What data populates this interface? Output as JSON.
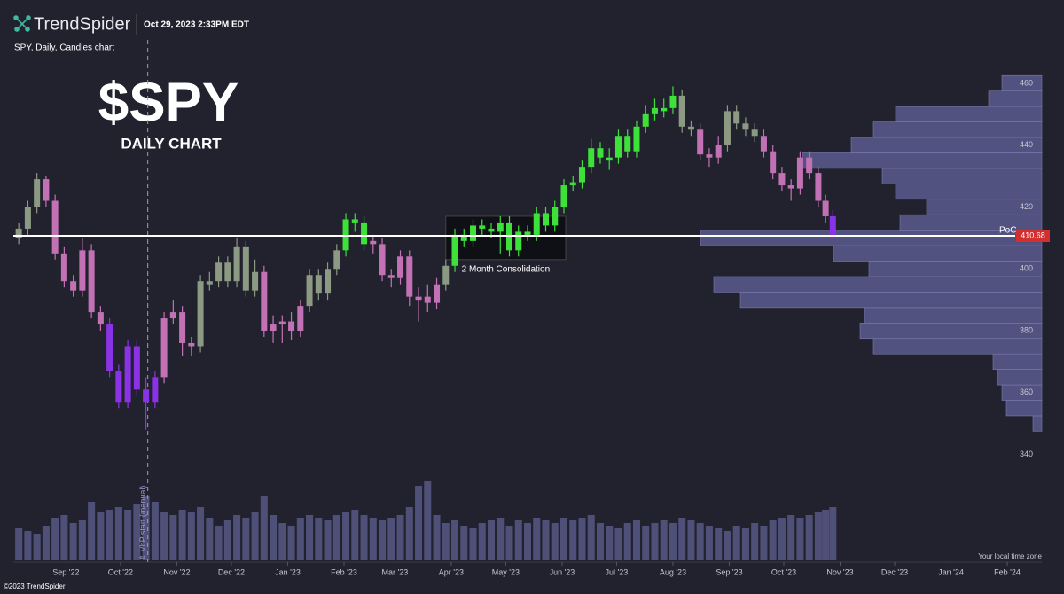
{
  "header": {
    "brand": "TrendSpider",
    "timestamp": "Oct 29, 2023 2:33PM EDT",
    "subtitle": "SPY, Daily, Candles chart",
    "copyright": "©2023 TrendSpider",
    "timezone": "Your local time zone"
  },
  "chart_data": {
    "type": "candlestick",
    "title": "$SPY",
    "subtitle": "DAILY CHART",
    "xlim": [
      2,
      568
    ],
    "ylim": [
      335,
      464
    ],
    "yticks": [
      340,
      360,
      380,
      400,
      420,
      440,
      460
    ],
    "xticks": [
      {
        "value": 31,
        "label": "Sep '22"
      },
      {
        "value": 61,
        "label": "Oct '22"
      },
      {
        "value": 92,
        "label": "Nov '22"
      },
      {
        "value": 122,
        "label": "Dec '22"
      },
      {
        "value": 153,
        "label": "Jan '23"
      },
      {
        "value": 184,
        "label": "Feb '23"
      },
      {
        "value": 212,
        "label": "Mar '23"
      },
      {
        "value": 243,
        "label": "Apr '23"
      },
      {
        "value": 273,
        "label": "May '23"
      },
      {
        "value": 304,
        "label": "Jun '23"
      },
      {
        "value": 334,
        "label": "Jul '23"
      },
      {
        "value": 365,
        "label": "Aug '23"
      },
      {
        "value": 396,
        "label": "Sep '23"
      },
      {
        "value": 426,
        "label": "Oct '23"
      },
      {
        "value": 457,
        "label": "Nov '23"
      },
      {
        "value": 487,
        "label": "Dec '23"
      },
      {
        "value": 518,
        "label": "Jan '24"
      },
      {
        "value": 549,
        "label": "Feb '24"
      }
    ],
    "x": [
      5,
      10,
      15,
      20,
      25,
      30,
      35,
      40,
      45,
      50,
      55,
      60,
      65,
      70,
      75,
      80,
      85,
      90,
      95,
      100,
      105,
      110,
      115,
      120,
      125,
      130,
      135,
      140,
      145,
      150,
      155,
      160,
      165,
      170,
      175,
      180,
      185,
      190,
      195,
      200,
      205,
      210,
      215,
      220,
      225,
      230,
      235,
      240,
      245,
      250,
      255,
      260,
      265,
      270,
      275,
      280,
      285,
      290,
      295,
      300,
      305,
      310,
      315,
      320,
      325,
      330,
      335,
      340,
      345,
      350,
      355,
      360,
      365,
      370,
      375,
      380,
      385,
      390,
      395,
      400,
      405,
      410,
      415,
      420,
      425,
      430,
      435,
      440,
      445,
      449,
      453
    ],
    "ohlc": [
      [
        410,
        415,
        408,
        413
      ],
      [
        413,
        422,
        411,
        420
      ],
      [
        420,
        431,
        418,
        429
      ],
      [
        429,
        430,
        420,
        422
      ],
      [
        422,
        424,
        403,
        405
      ],
      [
        405,
        407,
        394,
        396
      ],
      [
        396,
        398,
        391,
        393
      ],
      [
        393,
        410,
        391,
        406
      ],
      [
        406,
        408,
        384,
        386
      ],
      [
        386,
        388,
        380,
        382
      ],
      [
        382,
        384,
        365,
        367
      ],
      [
        367,
        369,
        355,
        357
      ],
      [
        357,
        377,
        355,
        375
      ],
      [
        375,
        377,
        359,
        361
      ],
      [
        361,
        365,
        348,
        357
      ],
      [
        357,
        367,
        355,
        365
      ],
      [
        365,
        386,
        363,
        384
      ],
      [
        384,
        390,
        382,
        386
      ],
      [
        386,
        388,
        372,
        376
      ],
      [
        376,
        378,
        372,
        375
      ],
      [
        375,
        398,
        373,
        396
      ],
      [
        395,
        399,
        393,
        396
      ],
      [
        396,
        404,
        394,
        402
      ],
      [
        402,
        404,
        394,
        396
      ],
      [
        396,
        410,
        394,
        407
      ],
      [
        407,
        409,
        391,
        393
      ],
      [
        393,
        403,
        391,
        399
      ],
      [
        399,
        401,
        378,
        380
      ],
      [
        380,
        385,
        376,
        382
      ],
      [
        382,
        385,
        376,
        383
      ],
      [
        383,
        386,
        377,
        380
      ],
      [
        380,
        390,
        378,
        388
      ],
      [
        388,
        400,
        386,
        398
      ],
      [
        398,
        400,
        390,
        392
      ],
      [
        392,
        402,
        390,
        400
      ],
      [
        400,
        408,
        398,
        406
      ],
      [
        406,
        418,
        404,
        416
      ],
      [
        416,
        418,
        412,
        415
      ],
      [
        415,
        417,
        406,
        408
      ],
      [
        409,
        411,
        405,
        408
      ],
      [
        408,
        410,
        396,
        398
      ],
      [
        398,
        400,
        394,
        397
      ],
      [
        397,
        406,
        395,
        404
      ],
      [
        404,
        406,
        388,
        391
      ],
      [
        390,
        394,
        383,
        391
      ],
      [
        391,
        395,
        386,
        389
      ],
      [
        389,
        397,
        387,
        395
      ],
      [
        395,
        403,
        393,
        401
      ],
      [
        401,
        413,
        399,
        411
      ],
      [
        411,
        413,
        407,
        409
      ],
      [
        409,
        416,
        407,
        414
      ],
      [
        414,
        416,
        411,
        413
      ],
      [
        413,
        415,
        410,
        412
      ],
      [
        412,
        417,
        405,
        415
      ],
      [
        415,
        417,
        404,
        406
      ],
      [
        406,
        414,
        404,
        412
      ],
      [
        412,
        414,
        409,
        411
      ],
      [
        411,
        420,
        409,
        418
      ],
      [
        418,
        420,
        412,
        414
      ],
      [
        414,
        422,
        412,
        420
      ],
      [
        420,
        429,
        418,
        427
      ],
      [
        427,
        430,
        425,
        428
      ],
      [
        428,
        435,
        426,
        433
      ],
      [
        433,
        442,
        431,
        439
      ],
      [
        439,
        441,
        434,
        436
      ],
      [
        435,
        439,
        432,
        436
      ],
      [
        436,
        445,
        434,
        443
      ],
      [
        443,
        445,
        436,
        438
      ],
      [
        438,
        448,
        436,
        446
      ],
      [
        446,
        453,
        444,
        450
      ],
      [
        450,
        455,
        448,
        452
      ],
      [
        451,
        455,
        449,
        452
      ],
      [
        452,
        459,
        450,
        456
      ],
      [
        456,
        458,
        444,
        446
      ],
      [
        446,
        448,
        443,
        445
      ],
      [
        445,
        447,
        435,
        437
      ],
      [
        437,
        439,
        433,
        436
      ],
      [
        436,
        443,
        434,
        440
      ],
      [
        440,
        453,
        438,
        451
      ],
      [
        451,
        453,
        445,
        447
      ],
      [
        447,
        449,
        443,
        445
      ],
      [
        445,
        447,
        441,
        443
      ],
      [
        443,
        445,
        436,
        438
      ],
      [
        438,
        440,
        429,
        431
      ],
      [
        431,
        433,
        425,
        427
      ],
      [
        427,
        429,
        422,
        426
      ],
      [
        426,
        438,
        424,
        436
      ],
      [
        436,
        438,
        429,
        431
      ],
      [
        431,
        433,
        420,
        422
      ],
      [
        422,
        424,
        415,
        417
      ],
      [
        417,
        419,
        409,
        410.68
      ]
    ],
    "colors": [
      "#8c9983",
      "#8c9983",
      "#8c9983",
      "#c272b4",
      "#c272b4",
      "#c272b4",
      "#c272b4",
      "#c272b4",
      "#c272b4",
      "#c272b4",
      "#8a33e6",
      "#8a33e6",
      "#8a33e6",
      "#8a33e6",
      "#8a33e6",
      "#8a33e6",
      "#c272b4",
      "#c272b4",
      "#c272b4",
      "#c272b4",
      "#8c9983",
      "#8c9983",
      "#8c9983",
      "#8c9983",
      "#8c9983",
      "#8c9983",
      "#8c9983",
      "#c272b4",
      "#c272b4",
      "#c272b4",
      "#c272b4",
      "#c272b4",
      "#8c9983",
      "#8c9983",
      "#8c9983",
      "#8c9983",
      "#3ee03a",
      "#3ee03a",
      "#3ee03a",
      "#c272b4",
      "#c272b4",
      "#c272b4",
      "#c272b4",
      "#c272b4",
      "#c272b4",
      "#c272b4",
      "#c272b4",
      "#8c9983",
      "#3ee03a",
      "#3ee03a",
      "#3ee03a",
      "#3ee03a",
      "#3ee03a",
      "#3ee03a",
      "#3ee03a",
      "#3ee03a",
      "#3ee03a",
      "#3ee03a",
      "#3ee03a",
      "#3ee03a",
      "#3ee03a",
      "#3ee03a",
      "#3ee03a",
      "#3ee03a",
      "#3ee03a",
      "#3ee03a",
      "#3ee03a",
      "#3ee03a",
      "#3ee03a",
      "#3ee03a",
      "#3ee03a",
      "#3ee03a",
      "#3ee03a",
      "#8c9983",
      "#8c9983",
      "#c272b4",
      "#c272b4",
      "#c272b4",
      "#8c9983",
      "#8c9983",
      "#8c9983",
      "#8c9983",
      "#c272b4",
      "#c272b4",
      "#c272b4",
      "#c272b4",
      "#c272b4",
      "#c272b4",
      "#c272b4",
      "#c272b4",
      "#8a33e6"
    ],
    "volume": [
      60,
      55,
      50,
      65,
      80,
      85,
      70,
      75,
      110,
      90,
      95,
      100,
      95,
      105,
      120,
      110,
      90,
      85,
      95,
      90,
      100,
      80,
      65,
      75,
      85,
      80,
      90,
      120,
      85,
      70,
      65,
      80,
      85,
      80,
      75,
      85,
      90,
      95,
      85,
      80,
      75,
      80,
      85,
      100,
      140,
      150,
      85,
      70,
      75,
      65,
      60,
      70,
      75,
      80,
      65,
      75,
      70,
      80,
      75,
      70,
      80,
      75,
      80,
      85,
      70,
      65,
      60,
      70,
      75,
      65,
      70,
      75,
      70,
      80,
      75,
      70,
      65,
      60,
      55,
      65,
      60,
      70,
      65,
      75,
      80,
      85,
      80,
      85,
      90,
      95,
      100
    ],
    "volume_profile": {
      "bins": [
        347.5,
        352.5,
        357.5,
        362.5,
        367.5,
        372.5,
        377.5,
        382.5,
        387.5,
        392.5,
        397.5,
        402.5,
        407.5,
        412.5,
        417.5,
        422.5,
        427.5,
        432.5,
        437.5,
        442.5,
        447.5,
        452.5,
        457.5,
        462.5
      ],
      "values": [
        10,
        40,
        45,
        50,
        55,
        190,
        205,
        200,
        340,
        370,
        195,
        235,
        385,
        160,
        130,
        165,
        180,
        270,
        215,
        190,
        165,
        60,
        45
      ]
    },
    "poc": {
      "label": "PoC",
      "value": 410.68
    },
    "consolidation": {
      "label": "2 Month Consolidation",
      "x": [
        240,
        306
      ],
      "y": [
        403,
        417
      ]
    },
    "vbp_start": {
      "label": "⇕ VbP start (manual)",
      "x": 76
    }
  }
}
